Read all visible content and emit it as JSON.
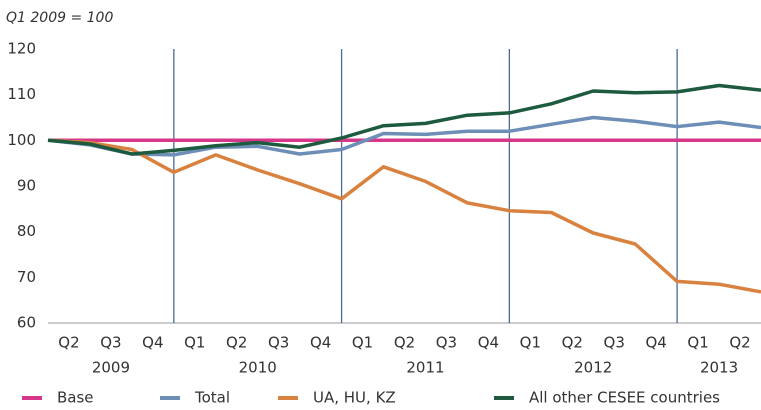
{
  "chart_data": {
    "type": "line",
    "title": "Q1 2009 = 100",
    "categories": [
      null,
      "Q2",
      "Q3",
      "Q4",
      "Q1",
      "Q2",
      "Q3",
      "Q4",
      "Q1",
      "Q2",
      "Q3",
      "Q4",
      "Q1",
      "Q2",
      "Q3",
      "Q4",
      "Q1",
      "Q2"
    ],
    "years": [
      "2009",
      "2010",
      "2011",
      "2012",
      "2013"
    ],
    "series": [
      {
        "name": "Base",
        "color": "#d6378a",
        "values": [
          100,
          100,
          100,
          100,
          100,
          100,
          100,
          100,
          100,
          100,
          100,
          100,
          100,
          100,
          100,
          100,
          100,
          100
        ]
      },
      {
        "name": "Total",
        "color": "#6d8fb7",
        "values": [
          100,
          99,
          97,
          96.8,
          98.5,
          98.7,
          97,
          98,
          101.5,
          101.3,
          102,
          102,
          103.5,
          105,
          104.2,
          103,
          104,
          102.8
        ]
      },
      {
        "name": "UA, HU, KZ",
        "color": "#d9823f",
        "values": [
          100,
          99.5,
          98,
          93,
          96.8,
          93.5,
          90.5,
          87.2,
          94.2,
          91,
          86.3,
          84.6,
          84.2,
          79.7,
          77.3,
          69.1,
          68.5,
          66.8
        ]
      },
      {
        "name": "All other CESEE countries",
        "color": "#1d5a3e",
        "values": [
          100,
          99.2,
          97,
          97.8,
          98.8,
          99.5,
          98.5,
          100.5,
          103.2,
          103.7,
          105.5,
          106,
          108,
          110.8,
          110.4,
          110.6,
          112,
          111
        ]
      }
    ],
    "ylim": [
      60,
      120
    ],
    "yticks": [
      60,
      70,
      80,
      90,
      100,
      110,
      120
    ],
    "grid": false
  }
}
